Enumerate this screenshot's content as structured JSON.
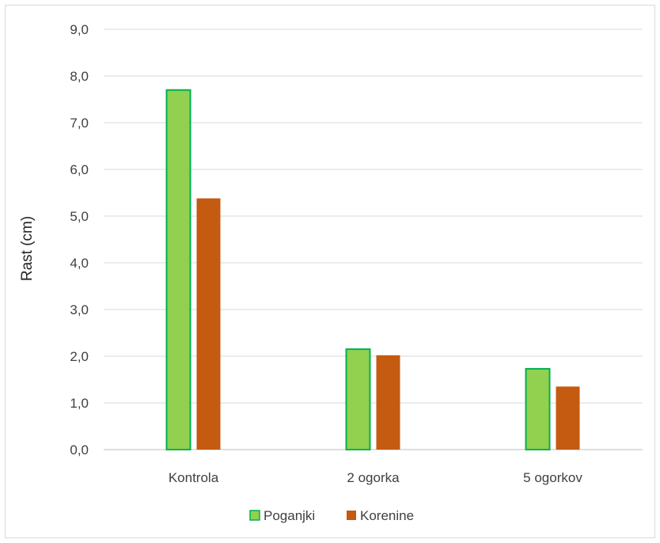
{
  "chart_data": {
    "type": "bar",
    "categories": [
      "Kontrola",
      "2 ogorka",
      "5 ogorkov"
    ],
    "series": [
      {
        "name": "Poganjki",
        "values": [
          7.7,
          2.15,
          1.73
        ],
        "color": "#92d050",
        "stroke": "#00b050"
      },
      {
        "name": "Korenine",
        "values": [
          5.38,
          2.02,
          1.35
        ],
        "color": "#c55a11"
      }
    ],
    "xlabel": "",
    "ylabel": "Rast (cm)",
    "ylim": [
      0,
      9
    ],
    "yticks": [
      "0,0",
      "1,0",
      "2,0",
      "3,0",
      "4,0",
      "5,0",
      "6,0",
      "7,0",
      "8,0",
      "9,0"
    ],
    "grid": true,
    "gridline_color": "#d9d9d9",
    "legend_position": "bottom"
  }
}
